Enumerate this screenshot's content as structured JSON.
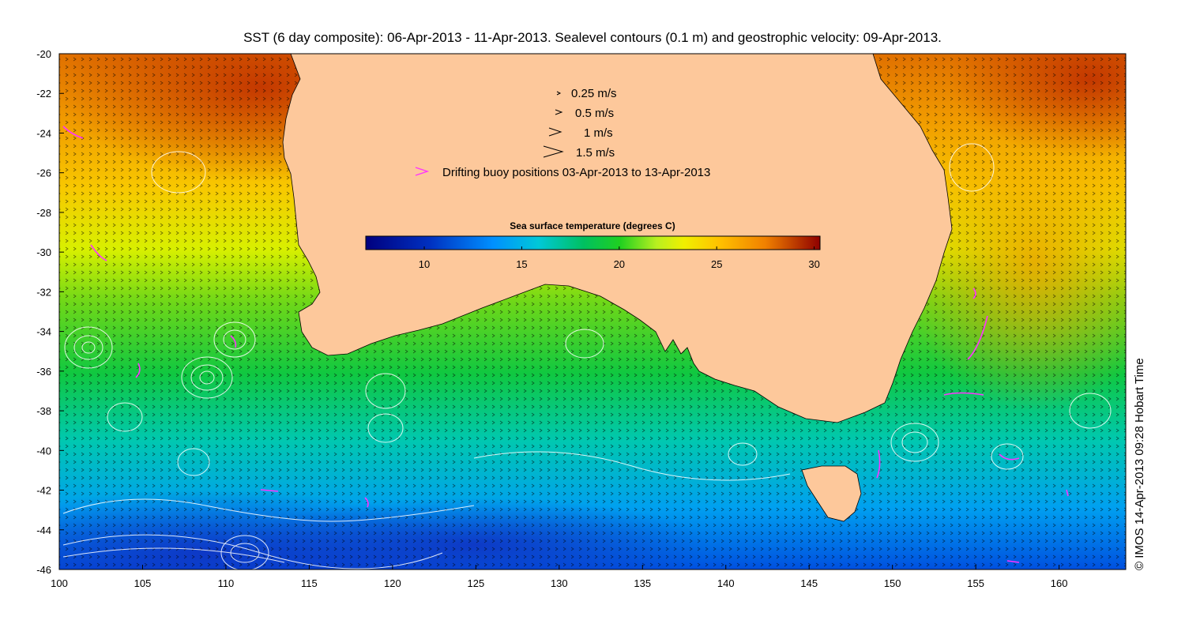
{
  "title": "SST (6 day composite): 06-Apr-2013 - 11-Apr-2013. Sealevel contours (0.1 m) and geostrophic velocity: 09-Apr-2013.",
  "credit": "© IMOS 14-Apr-2013 09:28 Hobart Time",
  "axes": {
    "lon_ticks": [
      "100",
      "105",
      "110",
      "115",
      "120",
      "125",
      "130",
      "135",
      "140",
      "145",
      "150",
      "155",
      "160"
    ],
    "lat_ticks": [
      "-20",
      "-22",
      "-24",
      "-26",
      "-28",
      "-30",
      "-32",
      "-34",
      "-36",
      "-38",
      "-40",
      "-42",
      "-44",
      "-46"
    ],
    "lon_range": [
      100,
      164
    ],
    "lat_range": [
      -46,
      -20
    ]
  },
  "legend": {
    "speeds": [
      {
        "label": "0.25 m/s",
        "value": 0.25
      },
      {
        "label": "0.5 m/s",
        "value": 0.5
      },
      {
        "label": "1 m/s",
        "value": 1
      },
      {
        "label": "1.5 m/s",
        "value": 1.5
      }
    ],
    "buoy_label": "Drifting buoy positions 03-Apr-2013 to 13-Apr-2013"
  },
  "colorbar": {
    "title": "Sea surface temperature (degrees C)",
    "ticks": [
      "10",
      "15",
      "20",
      "25",
      "30"
    ],
    "range": [
      7,
      30.3
    ]
  },
  "colors": {
    "land": "#fdc89b",
    "buoy": "#ff33ff",
    "contour": "#ffffff",
    "arrows": "#000000"
  }
}
